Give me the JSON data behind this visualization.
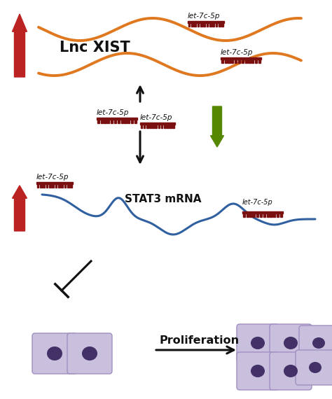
{
  "bg_color": "#ffffff",
  "orange_color": "#e07820",
  "blue_color": "#3060a0",
  "red_arrow_color": "#bb2222",
  "green_arrow_color": "#558800",
  "black_color": "#111111",
  "miRNA_bar_color": "#7a1010",
  "cell_fill": "#c8c0dc",
  "cell_edge": "#a090c0",
  "cell_nucleus": "#35205a",
  "lnc_xist_label": "Lnc XIST",
  "stat3_label": "STAT3 mRNA",
  "let7_label": "let-7c-5p",
  "proliferation_label": "Proliferation"
}
